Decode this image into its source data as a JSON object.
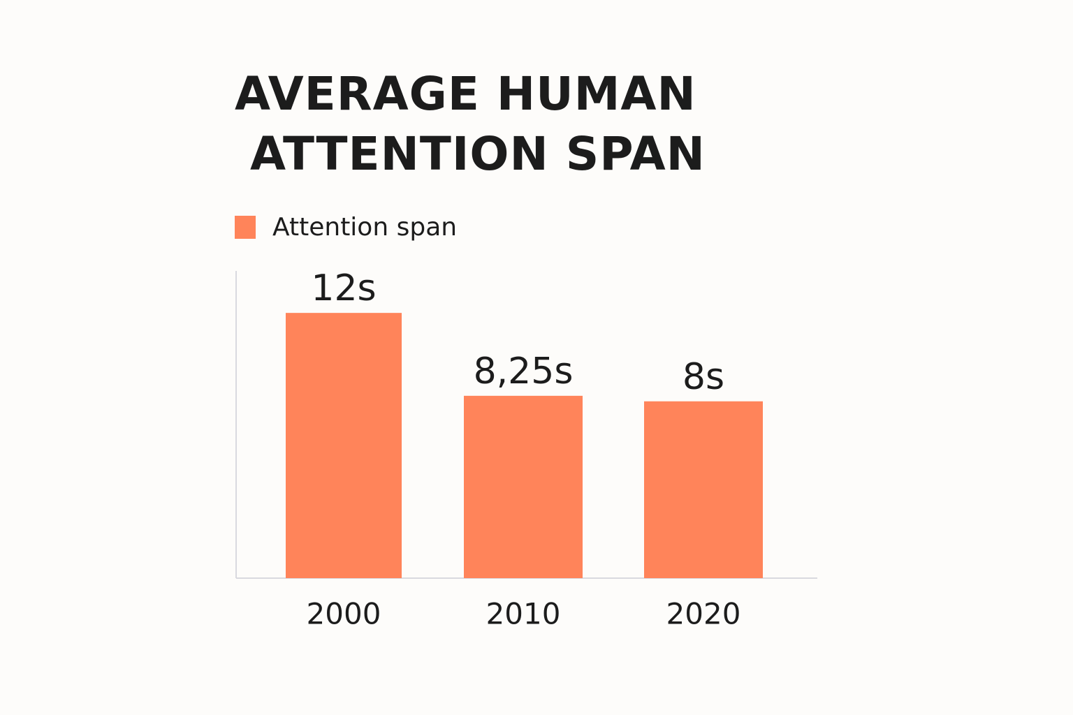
{
  "colors": {
    "bar": "#ff845a",
    "axis": "#d9d9df",
    "text": "#1c1c1c"
  },
  "chart_data": {
    "type": "bar",
    "title_lines": [
      "AVERAGE HUMAN",
      "ATTENTION SPAN"
    ],
    "legend": {
      "entries": [
        "Attention span"
      ],
      "placement": "top-left"
    },
    "categories": [
      "2000",
      "2010",
      "2020"
    ],
    "series": [
      {
        "name": "Attention span",
        "values": [
          12,
          8.25,
          8
        ],
        "labels": [
          "12s",
          "8,25s",
          "8s"
        ]
      }
    ],
    "ylim": [
      0,
      13.9
    ],
    "grid": false,
    "xlabel": "",
    "ylabel": ""
  }
}
